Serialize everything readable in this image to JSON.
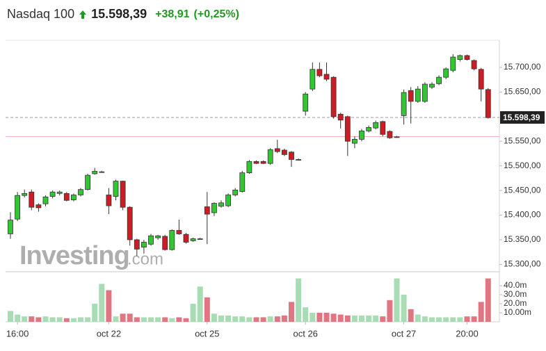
{
  "header": {
    "name": "Nasdaq 100",
    "price": "15.598,39",
    "change": "+38,91",
    "change_pct": "(+0,25%)"
  },
  "watermark": {
    "brand": "Investing",
    "suffix": ".com"
  },
  "chart_data": {
    "type": "candlestick",
    "last_price": 15598.39,
    "prev_close": 15559.48,
    "up_color": "#33c633",
    "down_color": "#cc1d24",
    "volume_up_color": "#a8dcb4",
    "volume_down_color": "#e07682",
    "open": [
      15362,
      15392,
      15440,
      15447,
      15421,
      15423,
      15438,
      15444,
      15444,
      15431,
      15441,
      15452,
      15484,
      15488,
      15441,
      15438,
      15469,
      15416,
      15350,
      15335,
      15341,
      15354,
      15357,
      15330,
      15369,
      15361,
      15348,
      15352,
      15417,
      15405,
      15418,
      15419,
      15441,
      15448,
      15486,
      15509,
      15509,
      15505,
      15535,
      15532,
      15528,
      15513,
      15611,
      15656,
      15696,
      15686,
      15680,
      15605,
      15600,
      15546,
      15554,
      15571,
      15577,
      15590,
      15570,
      15559,
      15602,
      15653,
      15631,
      15631,
      15660,
      15667,
      15680,
      15694,
      15716,
      15724,
      15714,
      15696,
      15655
    ],
    "high": [
      15406,
      15447,
      15452,
      15452,
      15424,
      15440,
      15450,
      15450,
      15447,
      15444,
      15455,
      15484,
      15496,
      15490,
      15455,
      15472,
      15470,
      15418,
      15352,
      15350,
      15362,
      15360,
      15360,
      15371,
      15391,
      15364,
      15354,
      15354,
      15447,
      15426,
      15430,
      15444,
      15455,
      15490,
      15512,
      15511,
      15511,
      15536,
      15553,
      15535,
      15530,
      15515,
      15650,
      15710,
      15710,
      15710,
      15682,
      15608,
      15602,
      15560,
      15575,
      15582,
      15592,
      15592,
      15572,
      15561,
      15655,
      15660,
      15662,
      15670,
      15670,
      15684,
      15700,
      15727,
      15726,
      15726,
      15716,
      15699,
      15658
    ],
    "low": [
      15352,
      15388,
      15436,
      15410,
      15407,
      15418,
      15434,
      15440,
      15428,
      15428,
      15438,
      15450,
      15482,
      15486,
      15402,
      15430,
      15410,
      15338,
      15317,
      15322,
      15338,
      15350,
      15328,
      15328,
      15360,
      15342,
      15346,
      15350,
      15341,
      15398,
      15415,
      15416,
      15438,
      15446,
      15484,
      15504,
      15504,
      15502,
      15526,
      15520,
      15498,
      15511,
      15602,
      15652,
      15680,
      15672,
      15596,
      15576,
      15520,
      15536,
      15550,
      15568,
      15574,
      15560,
      15555,
      15557,
      15584,
      15586,
      15628,
      15628,
      15656,
      15664,
      15676,
      15690,
      15712,
      15714,
      15694,
      15631,
      15596
    ],
    "close": [
      15390,
      15440,
      15444,
      15416,
      15415,
      15437,
      15447,
      15447,
      15430,
      15441,
      15452,
      15481,
      15489,
      15488,
      15419,
      15469,
      15416,
      15350,
      15331,
      15345,
      15358,
      15358,
      15330,
      15369,
      15362,
      15345,
      15352,
      15352,
      15402,
      15424,
      15425,
      15441,
      15451,
      15486,
      15509,
      15505,
      15505,
      15533,
      15529,
      15523,
      15513,
      15513,
      15646,
      15696,
      15683,
      15676,
      15600,
      15593,
      15550,
      15554,
      15571,
      15578,
      15588,
      15564,
      15557,
      15559,
      15649,
      15631,
      15656,
      15666,
      15666,
      15680,
      15697,
      15721,
      15724,
      15716,
      15697,
      15656,
      15598
    ],
    "volume": [
      12,
      8,
      6,
      6,
      5,
      6,
      5,
      5,
      4,
      4,
      5,
      5,
      20,
      42,
      35,
      6,
      9,
      9,
      5,
      5,
      5,
      5,
      5,
      4,
      5,
      4,
      20,
      39,
      27,
      9,
      7,
      7,
      6,
      6,
      5,
      5,
      5,
      6,
      6,
      7,
      22,
      48,
      16,
      10,
      10,
      10,
      9,
      8,
      7,
      7,
      7,
      7,
      7,
      6,
      24,
      48,
      30,
      14,
      8,
      6,
      5,
      5,
      5,
      5,
      5,
      6,
      6,
      22,
      48
    ],
    "ylim": [
      15285,
      15755
    ],
    "yticks": [
      {
        "value": 15300,
        "label": "15.300,00"
      },
      {
        "value": 15350,
        "label": "15.350,00"
      },
      {
        "value": 15400,
        "label": "15.400,00"
      },
      {
        "value": 15450,
        "label": "15.450,00"
      },
      {
        "value": 15500,
        "label": "15.500,00"
      },
      {
        "value": 15550,
        "label": "15.550,00"
      },
      {
        "value": 15650,
        "label": "15.650,00"
      },
      {
        "value": 15700,
        "label": "15.700,00"
      }
    ],
    "vlim": [
      0,
      50
    ],
    "vticks": [
      {
        "value": 10,
        "label": "10.00m"
      },
      {
        "value": 20,
        "label": "20.0m"
      },
      {
        "value": 30,
        "label": "30.0m"
      },
      {
        "value": 40,
        "label": "40.0m"
      }
    ],
    "x_labels": [
      {
        "index": 1,
        "label": "16:00"
      },
      {
        "index": 14,
        "label": "oct 22"
      },
      {
        "index": 28,
        "label": "oct 25"
      },
      {
        "index": 42,
        "label": "oct 26"
      },
      {
        "index": 56,
        "label": "oct 27"
      },
      {
        "index": 65,
        "label": "20:00"
      }
    ]
  }
}
